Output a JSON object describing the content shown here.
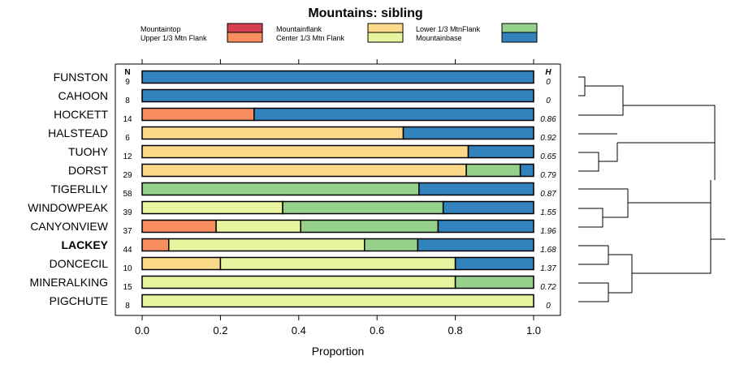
{
  "chart_data": {
    "type": "stacked-bar",
    "title": "Mountains: sibling",
    "xlabel": "Proportion",
    "xlim": [
      0,
      1
    ],
    "xticks": [
      "0.0",
      "0.2",
      "0.4",
      "0.6",
      "0.8",
      "1.0"
    ],
    "n_header": "N",
    "h_header": "H",
    "highlight": "LACKEY",
    "legend": [
      {
        "name": "Mountaintop",
        "color": "#d7404f"
      },
      {
        "name": "Upper 1/3 Mtn Flank",
        "color": "#f88d5e"
      },
      {
        "name": "Mountainflank",
        "color": "#fdd98a"
      },
      {
        "name": "Center 1/3 Mtn Flank",
        "color": "#e8f49e"
      },
      {
        "name": "Lower 1/3 MtnFlank",
        "color": "#95d18a"
      },
      {
        "name": "Mountainbase",
        "color": "#3282bd"
      }
    ],
    "rows": [
      {
        "name": "FUNSTON",
        "n": "9",
        "h": "0",
        "segments": [
          0,
          0,
          0,
          0,
          0,
          1
        ]
      },
      {
        "name": "CAHOON",
        "n": "8",
        "h": "0",
        "segments": [
          0,
          0,
          0,
          0,
          0,
          1
        ]
      },
      {
        "name": "HOCKETT",
        "n": "14",
        "h": "0.86",
        "segments": [
          0,
          0.286,
          0,
          0,
          0,
          0.714
        ]
      },
      {
        "name": "HALSTEAD",
        "n": "6",
        "h": "0.92",
        "segments": [
          0,
          0,
          0.667,
          0,
          0,
          0.333
        ]
      },
      {
        "name": "TUOHY",
        "n": "12",
        "h": "0.65",
        "segments": [
          0,
          0,
          0.833,
          0,
          0,
          0.167
        ]
      },
      {
        "name": "DORST",
        "n": "29",
        "h": "0.79",
        "segments": [
          0,
          0,
          0.828,
          0,
          0.138,
          0.034
        ]
      },
      {
        "name": "TIGERLILY",
        "n": "58",
        "h": "0.87",
        "segments": [
          0,
          0,
          0,
          0,
          0.707,
          0.293
        ]
      },
      {
        "name": "WINDOWPEAK",
        "n": "39",
        "h": "1.55",
        "segments": [
          0,
          0,
          0,
          0.359,
          0.41,
          0.231
        ]
      },
      {
        "name": "CANYONVIEW",
        "n": "37",
        "h": "1.96",
        "segments": [
          0,
          0.189,
          0,
          0.216,
          0.351,
          0.244
        ]
      },
      {
        "name": "LACKEY",
        "n": "44",
        "h": "1.68",
        "segments": [
          0,
          0.068,
          0,
          0.5,
          0.136,
          0.296
        ]
      },
      {
        "name": "DONCECIL",
        "n": "10",
        "h": "1.37",
        "segments": [
          0,
          0,
          0.2,
          0.6,
          0,
          0.2
        ]
      },
      {
        "name": "MINERALKING",
        "n": "15",
        "h": "0.72",
        "segments": [
          0,
          0,
          0,
          0.8,
          0.2,
          0
        ]
      },
      {
        "name": "PIGCHUTE",
        "n": "8",
        "h": "0",
        "segments": [
          0,
          0,
          0,
          1,
          0,
          0
        ]
      }
    ]
  }
}
